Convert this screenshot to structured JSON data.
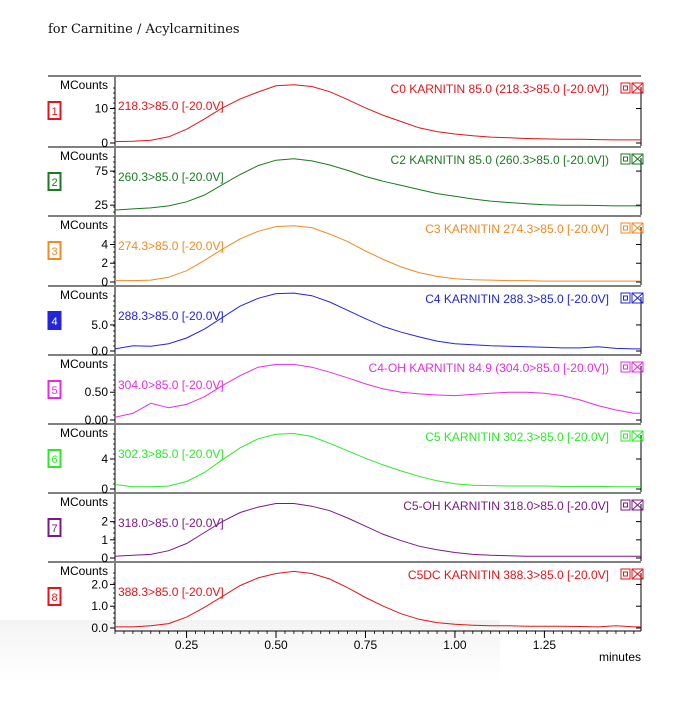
{
  "page": {
    "title": "for Carnitine / Acylcarnitines"
  },
  "chart_data": {
    "type": "line",
    "xlabel": "minutes",
    "xlim": [
      0.05,
      1.52
    ],
    "x_ticks": [
      "0.25",
      "0.50",
      "0.75",
      "1.00",
      "1.25"
    ],
    "x_tick_values": [
      0.25,
      0.5,
      0.75,
      1.0,
      1.25
    ],
    "y_unit_label": "MCounts",
    "panels": [
      {
        "index": "1",
        "name": "C0 KARNITIN 85.0 (218.3>85.0 [-20.0V])",
        "transition": "218.3>85.0 [-20.0V]",
        "color": "#e0161b",
        "ylim": [
          0,
          18
        ],
        "y_ticks": [
          "0",
          "10"
        ],
        "y_tick_values": [
          0,
          10
        ],
        "x": [
          0.05,
          0.1,
          0.15,
          0.2,
          0.25,
          0.3,
          0.35,
          0.4,
          0.45,
          0.5,
          0.55,
          0.6,
          0.65,
          0.7,
          0.75,
          0.8,
          0.85,
          0.9,
          0.95,
          1.0,
          1.05,
          1.1,
          1.15,
          1.2,
          1.25,
          1.3,
          1.35,
          1.4,
          1.45,
          1.5,
          1.52
        ],
        "y": [
          0.4,
          0.5,
          0.8,
          1.8,
          4,
          7,
          10.2,
          12.8,
          14.8,
          16.6,
          16.9,
          16.4,
          14.9,
          12.6,
          10.2,
          8,
          6.2,
          4.4,
          3.3,
          2.6,
          2.1,
          1.7,
          1.5,
          1.3,
          1.2,
          1.1,
          1.1,
          1.0,
          0.9,
          0.9,
          0.9
        ]
      },
      {
        "index": "2",
        "name": "C2 KARNITIN 85.0 (260.3>85.0 [-20.0V])",
        "transition": "260.3>85.0 [-20.0V]",
        "color": "#1c7a22",
        "ylim": [
          15,
          103
        ],
        "y_ticks": [
          "25",
          "75"
        ],
        "y_tick_values": [
          25,
          75
        ],
        "x": [
          0.05,
          0.1,
          0.15,
          0.2,
          0.25,
          0.3,
          0.35,
          0.4,
          0.45,
          0.5,
          0.55,
          0.6,
          0.65,
          0.7,
          0.75,
          0.8,
          0.85,
          0.9,
          0.95,
          1.0,
          1.05,
          1.1,
          1.15,
          1.2,
          1.25,
          1.3,
          1.35,
          1.4,
          1.45,
          1.5,
          1.52
        ],
        "y": [
          18,
          19.5,
          21,
          24,
          30,
          40,
          55,
          70,
          83,
          91,
          93,
          90,
          84,
          76,
          67,
          60,
          54,
          48,
          42,
          38,
          34,
          31,
          29,
          27,
          25.5,
          25,
          25,
          24.5,
          24,
          24,
          24
        ]
      },
      {
        "index": "3",
        "name": "C3 KARNITIN 274.3>85.0 [-20.0V]",
        "transition": "274.3>85.0 [-20.0V]",
        "color": "#f08a24",
        "ylim": [
          0,
          6.5
        ],
        "y_ticks": [
          "0",
          "2",
          "4"
        ],
        "y_tick_values": [
          0,
          2,
          4
        ],
        "x": [
          0.05,
          0.1,
          0.15,
          0.2,
          0.25,
          0.3,
          0.35,
          0.4,
          0.45,
          0.5,
          0.55,
          0.6,
          0.65,
          0.7,
          0.75,
          0.8,
          0.85,
          0.9,
          0.95,
          1.0,
          1.05,
          1.1,
          1.15,
          1.2,
          1.25,
          1.3,
          1.35,
          1.4,
          1.45,
          1.5,
          1.52
        ],
        "y": [
          0.15,
          0.15,
          0.2,
          0.5,
          1.2,
          2.3,
          3.5,
          4.6,
          5.4,
          5.9,
          6.0,
          5.8,
          5.1,
          4.3,
          3.3,
          2.4,
          1.6,
          1.0,
          0.6,
          0.35,
          0.25,
          0.2,
          0.15,
          0.15,
          0.1,
          0.1,
          0.1,
          0.1,
          0.1,
          0.1,
          0.1
        ]
      },
      {
        "index": "4",
        "name": "C4 KARNITIN 288.3>85.0 [-20.0V]",
        "transition": "288.3>85.0 [-20.0V]",
        "color": "#2226d8",
        "ylim": [
          0,
          11.5
        ],
        "y_ticks": [
          "0.0",
          "5.0"
        ],
        "y_tick_values": [
          0,
          5
        ],
        "x": [
          0.05,
          0.1,
          0.15,
          0.2,
          0.25,
          0.3,
          0.35,
          0.4,
          0.45,
          0.5,
          0.55,
          0.6,
          0.65,
          0.7,
          0.75,
          0.8,
          0.85,
          0.9,
          0.95,
          1.0,
          1.05,
          1.1,
          1.15,
          1.2,
          1.25,
          1.3,
          1.35,
          1.4,
          1.45,
          1.5,
          1.52
        ],
        "y": [
          0.4,
          1.0,
          0.9,
          1.4,
          2.5,
          4.2,
          6.4,
          8.6,
          10.1,
          11.0,
          11.1,
          10.6,
          9.4,
          7.8,
          6.2,
          4.7,
          3.6,
          2.7,
          1.9,
          1.4,
          1.2,
          1.0,
          0.9,
          0.8,
          0.7,
          0.6,
          0.6,
          0.8,
          0.5,
          0.4,
          0.4
        ]
      },
      {
        "index": "5",
        "name": "C4-OH KARNITIN 84.9 (304.0>85.0 [-20.0V])",
        "transition": "304.0>85.0 [-20.0V]",
        "color": "#e52ee0",
        "ylim": [
          0,
          1.08
        ],
        "y_ticks": [
          "0.00",
          "0.50"
        ],
        "y_tick_values": [
          0,
          0.5
        ],
        "x": [
          0.05,
          0.1,
          0.15,
          0.2,
          0.25,
          0.3,
          0.35,
          0.4,
          0.45,
          0.5,
          0.55,
          0.6,
          0.65,
          0.7,
          0.75,
          0.8,
          0.85,
          0.9,
          0.95,
          1.0,
          1.05,
          1.1,
          1.15,
          1.2,
          1.25,
          1.3,
          1.35,
          1.4,
          1.45,
          1.5,
          1.52
        ],
        "y": [
          0.05,
          0.12,
          0.3,
          0.22,
          0.28,
          0.42,
          0.62,
          0.8,
          0.95,
          1.0,
          1.0,
          0.95,
          0.86,
          0.76,
          0.65,
          0.56,
          0.5,
          0.47,
          0.45,
          0.44,
          0.46,
          0.48,
          0.5,
          0.5,
          0.48,
          0.44,
          0.36,
          0.26,
          0.18,
          0.12,
          0.12
        ]
      },
      {
        "index": "6",
        "name": "C5 KARNITIN 302.3>85.0 [-20.0V]",
        "transition": "302.3>85.0 [-20.0V]",
        "color": "#2ee82e",
        "ylim": [
          0,
          8
        ],
        "y_ticks": [
          "0",
          "4"
        ],
        "y_tick_values": [
          0,
          4
        ],
        "x": [
          0.05,
          0.1,
          0.15,
          0.2,
          0.25,
          0.3,
          0.35,
          0.4,
          0.45,
          0.5,
          0.55,
          0.6,
          0.65,
          0.7,
          0.75,
          0.8,
          0.85,
          0.9,
          0.95,
          1.0,
          1.05,
          1.1,
          1.15,
          1.2,
          1.25,
          1.3,
          1.35,
          1.4,
          1.45,
          1.5,
          1.52
        ],
        "y": [
          0.6,
          0.3,
          0.3,
          0.4,
          1.0,
          2.2,
          3.9,
          5.5,
          6.7,
          7.3,
          7.4,
          7.0,
          6.1,
          5.1,
          4.1,
          3.2,
          2.4,
          1.7,
          1.1,
          0.7,
          0.5,
          0.45,
          0.4,
          0.4,
          0.4,
          0.35,
          0.35,
          0.35,
          0.3,
          0.3,
          0.3
        ]
      },
      {
        "index": "7",
        "name": "C5-OH KARNITIN 318.0>85.0 [-20.0V]",
        "transition": "318.0>85.0 [-20.0V]",
        "color": "#7a1a85",
        "ylim": [
          0,
          3.3
        ],
        "y_ticks": [
          "0",
          "1",
          "2"
        ],
        "y_tick_values": [
          0,
          1,
          2
        ],
        "x": [
          0.05,
          0.1,
          0.15,
          0.2,
          0.25,
          0.3,
          0.35,
          0.4,
          0.45,
          0.5,
          0.55,
          0.6,
          0.65,
          0.7,
          0.75,
          0.8,
          0.85,
          0.9,
          0.95,
          1.0,
          1.05,
          1.1,
          1.15,
          1.2,
          1.25,
          1.3,
          1.35,
          1.4,
          1.45,
          1.5,
          1.52
        ],
        "y": [
          0.1,
          0.15,
          0.2,
          0.4,
          0.8,
          1.4,
          2.0,
          2.5,
          2.8,
          3.0,
          3.0,
          2.85,
          2.6,
          2.2,
          1.75,
          1.3,
          0.95,
          0.65,
          0.45,
          0.3,
          0.2,
          0.15,
          0.12,
          0.1,
          0.1,
          0.1,
          0.1,
          0.1,
          0.1,
          0.1,
          0.1
        ]
      },
      {
        "index": "8",
        "name": "C5DC KARNITIN 388.3>85.0 [-20.0V]",
        "transition": "388.3>85.0 [-20.0V]",
        "color": "#e0161b",
        "ylim": [
          0,
          2.8
        ],
        "y_ticks": [
          "0.0",
          "1.0",
          "2.0"
        ],
        "y_tick_values": [
          0,
          1,
          2
        ],
        "x": [
          0.05,
          0.1,
          0.15,
          0.2,
          0.25,
          0.3,
          0.35,
          0.4,
          0.45,
          0.5,
          0.55,
          0.6,
          0.65,
          0.7,
          0.75,
          0.8,
          0.85,
          0.9,
          0.95,
          1.0,
          1.05,
          1.1,
          1.15,
          1.2,
          1.25,
          1.3,
          1.35,
          1.4,
          1.45,
          1.5,
          1.52
        ],
        "y": [
          0.05,
          0.05,
          0.1,
          0.2,
          0.5,
          0.95,
          1.45,
          1.95,
          2.3,
          2.5,
          2.6,
          2.5,
          2.25,
          1.85,
          1.4,
          1.0,
          0.65,
          0.4,
          0.25,
          0.17,
          0.13,
          0.1,
          0.1,
          0.08,
          0.08,
          0.08,
          0.07,
          0.05,
          0.1,
          0.05,
          0.05
        ]
      }
    ]
  }
}
